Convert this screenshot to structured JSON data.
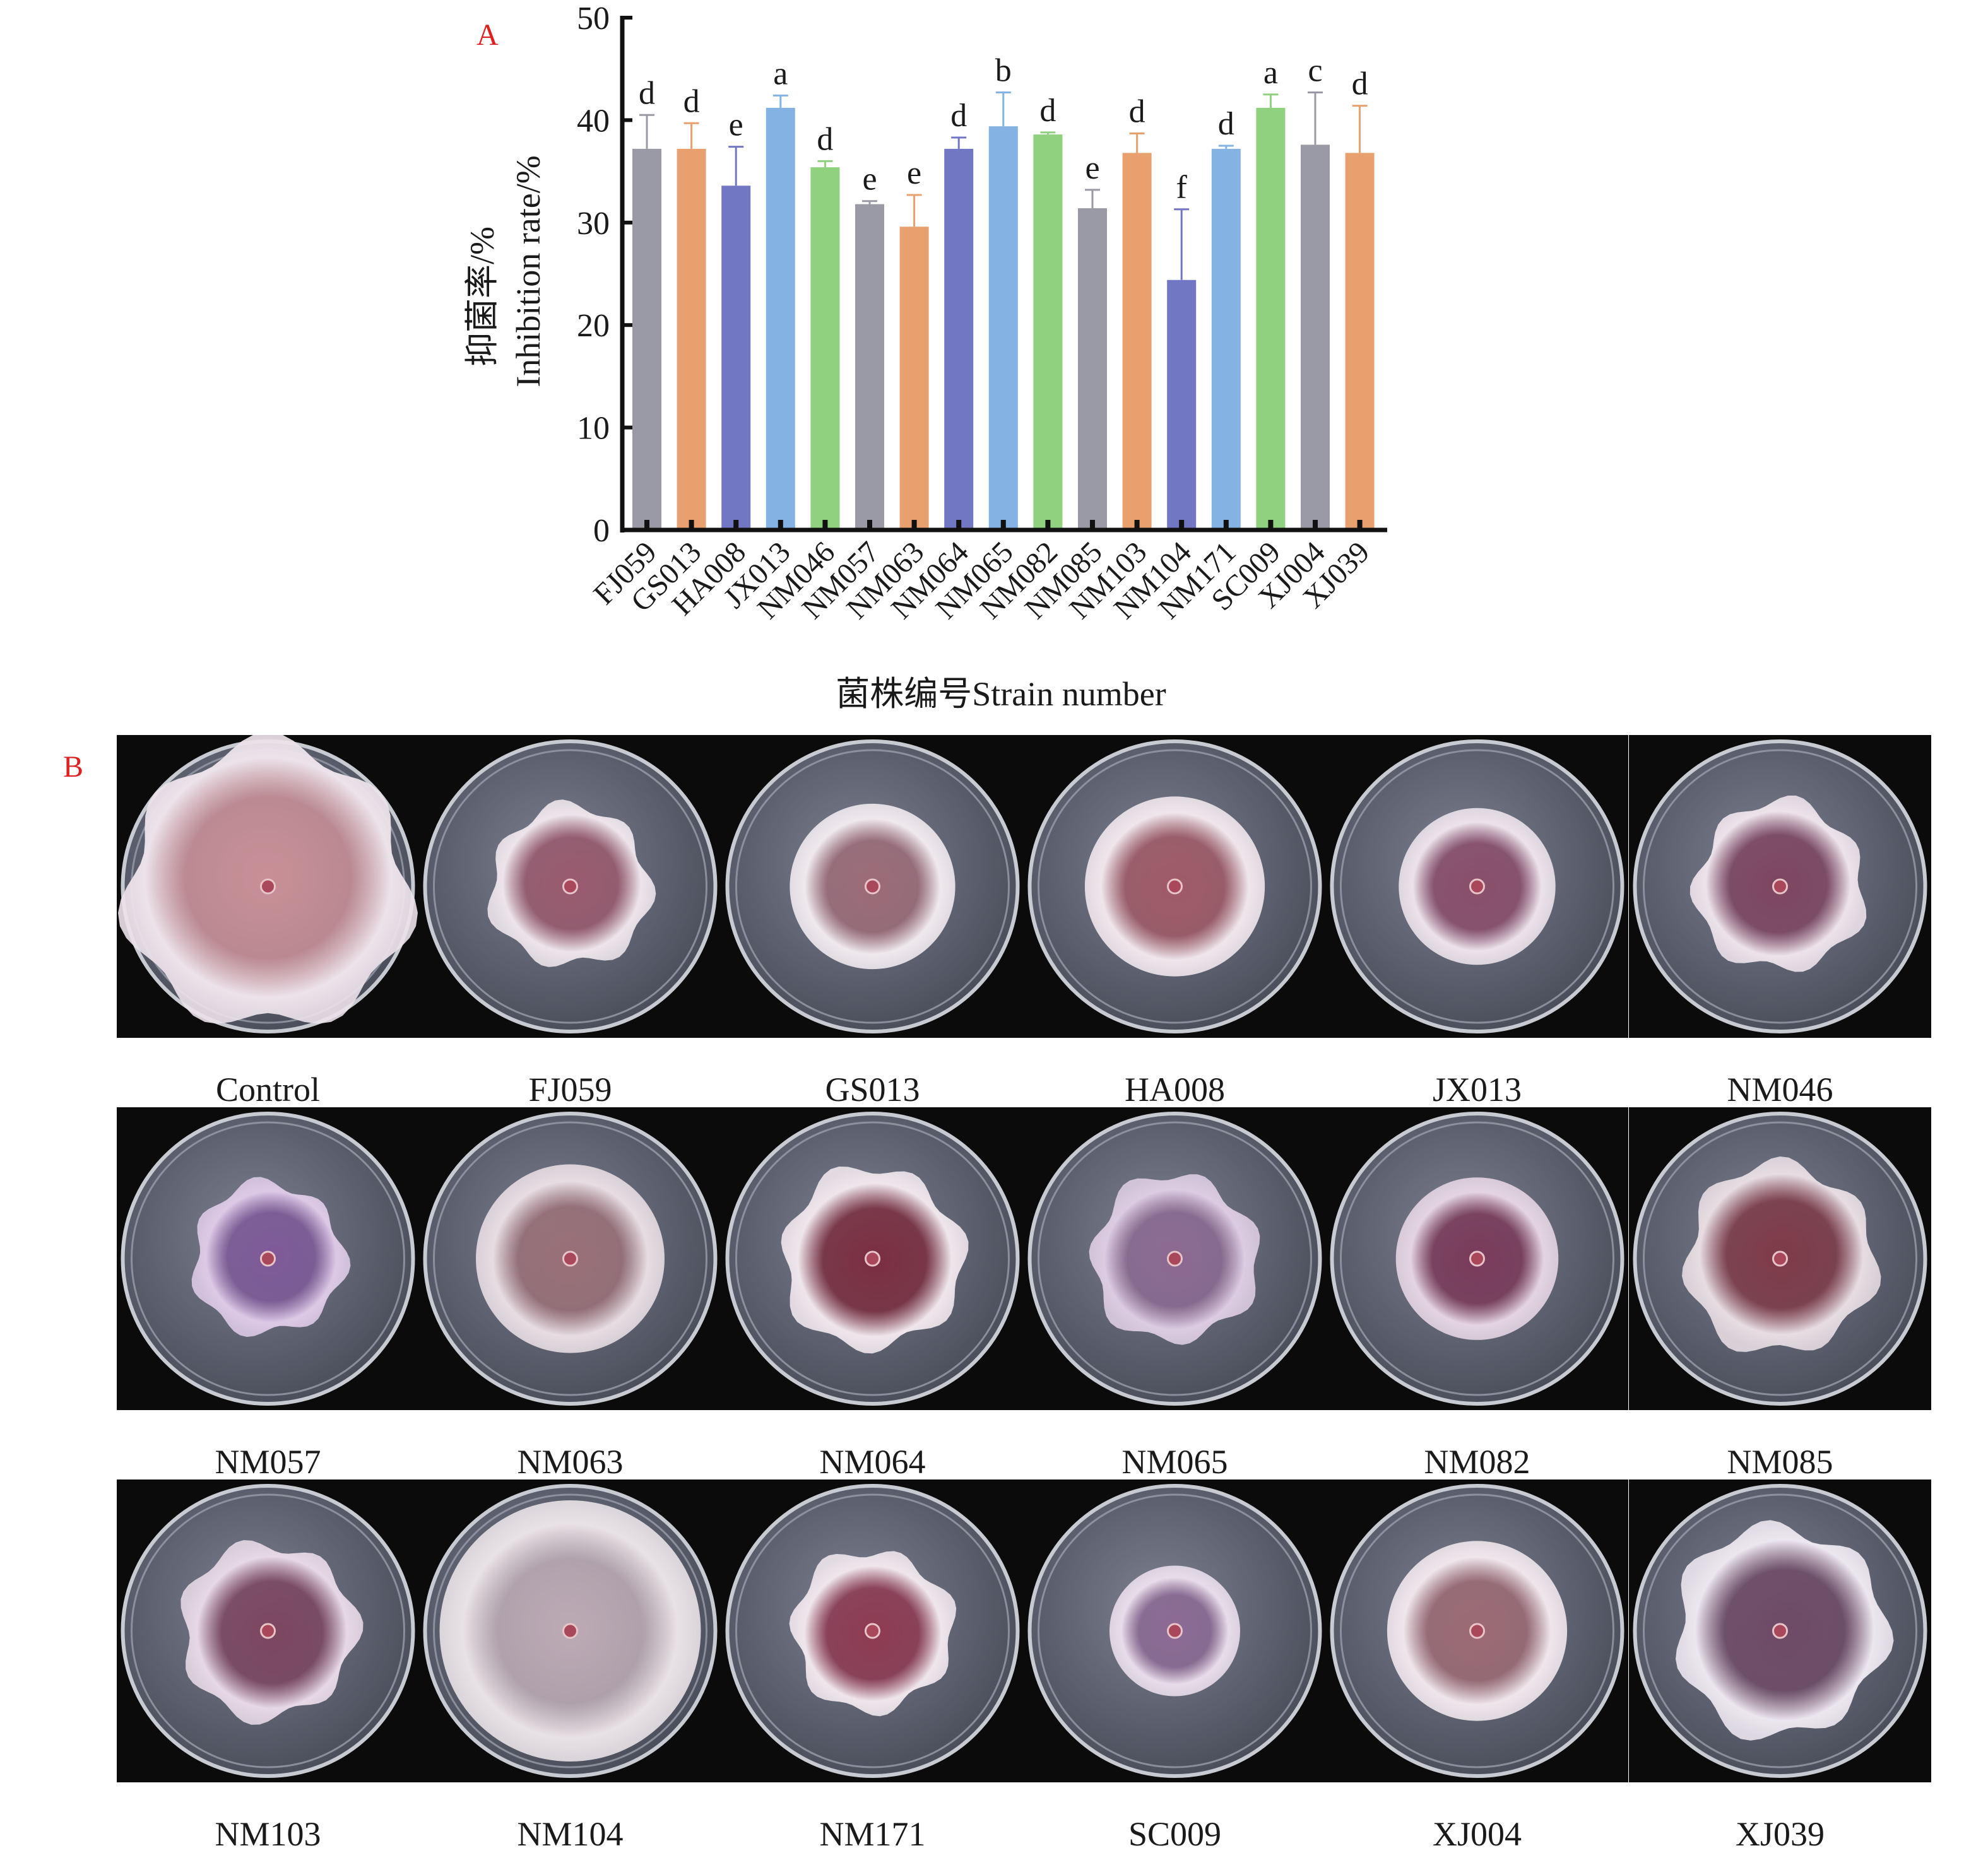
{
  "panels": {
    "a_letter": "A",
    "b_letter": "B"
  },
  "chart_data": {
    "type": "bar",
    "ylabel_cn": "抑菌率/%",
    "ylabel_en": "Inhibition rate/%",
    "xlabel": "菌株编号Strain number",
    "ylim": [
      0,
      50
    ],
    "yticks": [
      0,
      10,
      20,
      30,
      40,
      50
    ],
    "categories": [
      "FJ059",
      "GS013",
      "HA008",
      "JX013",
      "NM046",
      "NM057",
      "NM063",
      "NM064",
      "NM065",
      "NM082",
      "NM085",
      "NM103",
      "NM104",
      "NM171",
      "SC009",
      "XJ004",
      "XJ039"
    ],
    "values": [
      37.2,
      37.2,
      33.6,
      41.2,
      35.4,
      31.8,
      29.6,
      37.2,
      39.4,
      38.6,
      31.4,
      36.8,
      24.4,
      37.2,
      41.2,
      37.6,
      36.8
    ],
    "errors": [
      3.3,
      2.5,
      3.8,
      1.2,
      0.6,
      0.3,
      3.1,
      1.1,
      3.3,
      0.2,
      1.8,
      1.9,
      6.9,
      0.3,
      1.3,
      5.1,
      4.6
    ],
    "letters": [
      "d",
      "d",
      "e",
      "a",
      "d",
      "e",
      "e",
      "d",
      "b",
      "d",
      "e",
      "d",
      "f",
      "d",
      "a",
      "c",
      "d"
    ],
    "colors": [
      "#9a9aa6",
      "#e8a06e",
      "#7277c4",
      "#84b3e3",
      "#8fd17f",
      "#9a9aa6",
      "#e8a06e",
      "#7277c4",
      "#84b3e3",
      "#8fd17f",
      "#9a9aa6",
      "#e8a06e",
      "#7277c4",
      "#84b3e3",
      "#8fd17f",
      "#9a9aa6",
      "#e8a06e"
    ],
    "grid": false
  },
  "plates": {
    "rows": [
      [
        {
          "label": "Control",
          "colony_scale": 0.97,
          "center_hue": "#c98f96",
          "edge_hue": "#ece2ea",
          "lobed": true
        },
        {
          "label": "FJ059",
          "colony_scale": 0.55,
          "center_hue": "#9a5a6e",
          "edge_hue": "#ece4ea",
          "lobed": true
        },
        {
          "label": "GS013",
          "colony_scale": 0.57,
          "center_hue": "#9c6c78",
          "edge_hue": "#efe9ee",
          "lobed": false
        },
        {
          "label": "HA008",
          "colony_scale": 0.62,
          "center_hue": "#a05a66",
          "edge_hue": "#efe6ec",
          "lobed": false
        },
        {
          "label": "JX013",
          "colony_scale": 0.54,
          "center_hue": "#8a4e6a",
          "edge_hue": "#ebe2ea",
          "lobed": false
        },
        {
          "label": "NM046",
          "colony_scale": 0.58,
          "center_hue": "#7e4660",
          "edge_hue": "#ece2ea",
          "lobed": true
        }
      ],
      [
        {
          "label": "NM057",
          "colony_scale": 0.52,
          "center_hue": "#7e5a98",
          "edge_hue": "#dcc9e6",
          "lobed": true
        },
        {
          "label": "NM063",
          "colony_scale": 0.65,
          "center_hue": "#9a7078",
          "edge_hue": "#e6dce2",
          "lobed": false
        },
        {
          "label": "NM064",
          "colony_scale": 0.62,
          "center_hue": "#7a2e40",
          "edge_hue": "#efe6ec",
          "lobed": true
        },
        {
          "label": "NM065",
          "colony_scale": 0.57,
          "center_hue": "#8c6a92",
          "edge_hue": "#dccce2",
          "lobed": true
        },
        {
          "label": "NM082",
          "colony_scale": 0.56,
          "center_hue": "#7a3a5a",
          "edge_hue": "#e4d4e2",
          "lobed": false
        },
        {
          "label": "NM085",
          "colony_scale": 0.65,
          "center_hue": "#7e3a48",
          "edge_hue": "#e6dce2",
          "lobed": true
        }
      ],
      [
        {
          "label": "NM103",
          "colony_scale": 0.6,
          "center_hue": "#7c4660",
          "edge_hue": "#e6d8e4",
          "lobed": true
        },
        {
          "label": "NM104",
          "colony_scale": 0.9,
          "center_hue": "#bcaab4",
          "edge_hue": "#e8e2e6",
          "lobed": false
        },
        {
          "label": "NM171",
          "colony_scale": 0.55,
          "center_hue": "#8e3a52",
          "edge_hue": "#efe6ec",
          "lobed": true
        },
        {
          "label": "SC009",
          "colony_scale": 0.45,
          "center_hue": "#8c6a94",
          "edge_hue": "#e8dcea",
          "lobed": false
        },
        {
          "label": "XJ004",
          "colony_scale": 0.62,
          "center_hue": "#9c6a74",
          "edge_hue": "#efe6ec",
          "lobed": false
        },
        {
          "label": "XJ039",
          "colony_scale": 0.72,
          "center_hue": "#6e4a66",
          "edge_hue": "#ece6ee",
          "lobed": true
        }
      ]
    ]
  }
}
